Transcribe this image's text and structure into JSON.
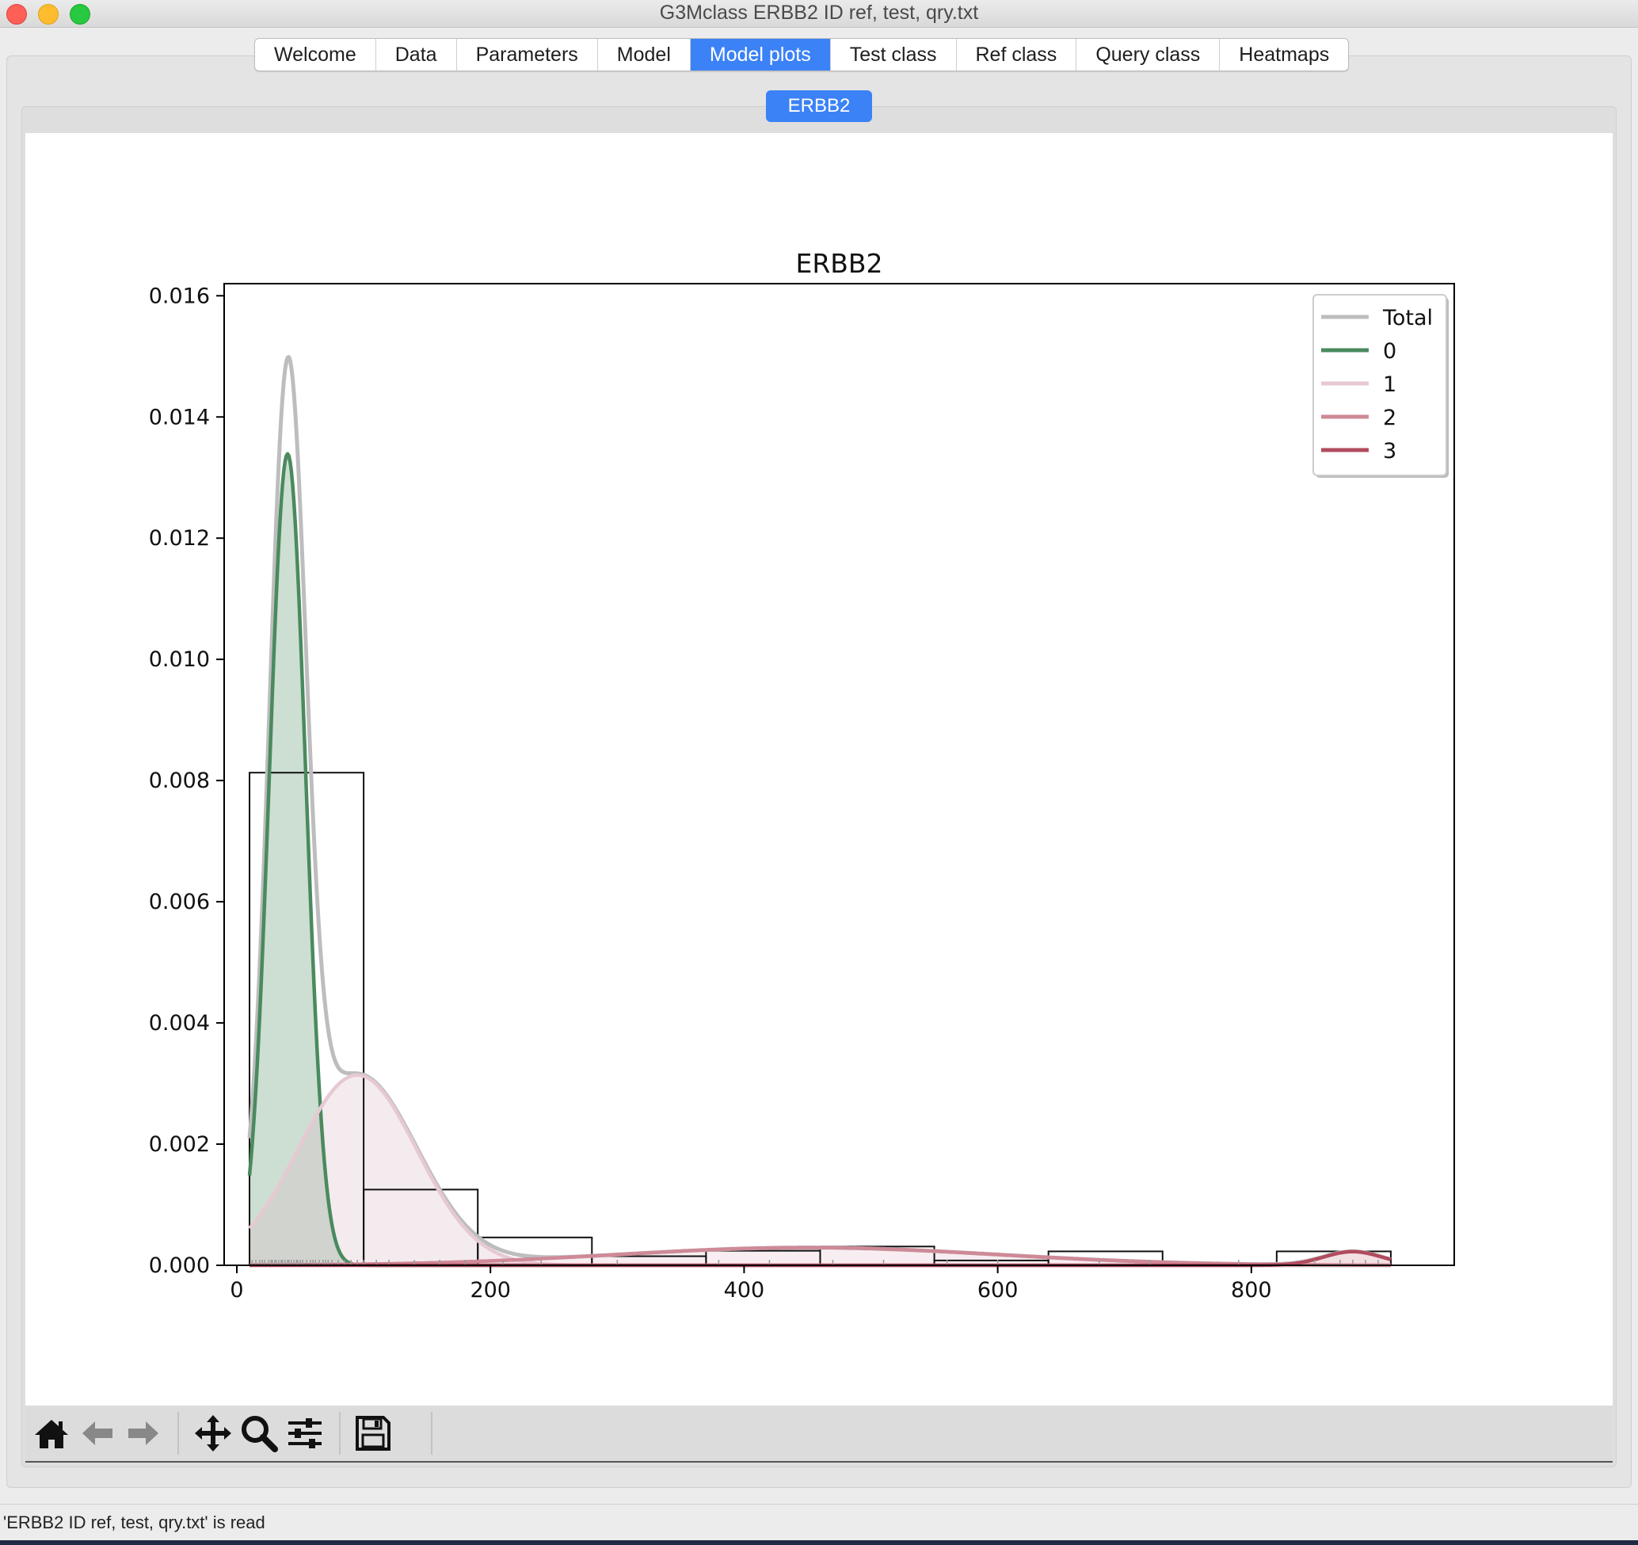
{
  "window": {
    "title": "G3Mclass ERBB2 ID ref, test, qry.txt"
  },
  "tabs": [
    {
      "label": "Welcome"
    },
    {
      "label": "Data"
    },
    {
      "label": "Parameters"
    },
    {
      "label": "Model"
    },
    {
      "label": "Model plots",
      "active": true
    },
    {
      "label": "Test class"
    },
    {
      "label": "Ref class"
    },
    {
      "label": "Query class"
    },
    {
      "label": "Heatmaps"
    }
  ],
  "subtab": {
    "label": "ERBB2"
  },
  "toolbar": {
    "icons": [
      "home-icon",
      "back-arrow-icon",
      "forward-arrow-icon",
      "pan-icon",
      "zoom-icon",
      "configure-subplots-icon",
      "save-icon"
    ]
  },
  "status": {
    "text": "'ERBB2 ID ref, test, qry.txt' is read"
  },
  "chart_data": {
    "type": "histogram+density",
    "title": "ERBB2",
    "xlabel": "",
    "ylabel": "",
    "xlim": [
      -10,
      960
    ],
    "ylim": [
      0,
      0.0162
    ],
    "xticks": [
      0,
      200,
      400,
      600,
      800
    ],
    "yticks": [
      0.0,
      0.002,
      0.004,
      0.006,
      0.008,
      0.01,
      0.012,
      0.014,
      0.016
    ],
    "ytick_labels": [
      "0.000",
      "0.002",
      "0.004",
      "0.006",
      "0.008",
      "0.010",
      "0.012",
      "0.014",
      "0.016"
    ],
    "legend_position": "top-right",
    "grid": false,
    "histogram": {
      "bin_edges": [
        10,
        100,
        190,
        280,
        370,
        460,
        550,
        640,
        730,
        820,
        910
      ],
      "density": [
        0.00813,
        0.00125,
        0.00046,
        0.00015,
        0.00024,
        0.00031,
        8e-05,
        0.00023,
        0.0,
        0.00023
      ]
    },
    "components": [
      {
        "name": "0",
        "color": "#4a8a5e",
        "fill": "#4a8a5e",
        "weight": 0.48,
        "mean": 40,
        "sd": 14.3
      },
      {
        "name": "1",
        "color": "#e6c9d3",
        "fill": "#d9b7c6",
        "weight": 0.37,
        "mean": 95,
        "sd": 47
      },
      {
        "name": "2",
        "color": "#cf8997",
        "fill": "#e7c2cc",
        "weight": 0.11,
        "mean": 450,
        "sd": 150
      },
      {
        "name": "3",
        "color": "#b14b5e",
        "fill": "#d4909c",
        "weight": 0.013,
        "mean": 880,
        "sd": 23
      }
    ],
    "total": {
      "name": "Total",
      "color": "#bdbdbd"
    },
    "rug": [
      12,
      15,
      18,
      20,
      22,
      25,
      27,
      28,
      30,
      31,
      33,
      35,
      36,
      38,
      40,
      41,
      43,
      45,
      47,
      48,
      50,
      52,
      55,
      58,
      60,
      62,
      65,
      68,
      70,
      72,
      75,
      80,
      85,
      90,
      95,
      100,
      110,
      120,
      140,
      160,
      180,
      210,
      240,
      300,
      380,
      420,
      470,
      510,
      560,
      600,
      680,
      720,
      790,
      850,
      870,
      880,
      890,
      900
    ]
  }
}
